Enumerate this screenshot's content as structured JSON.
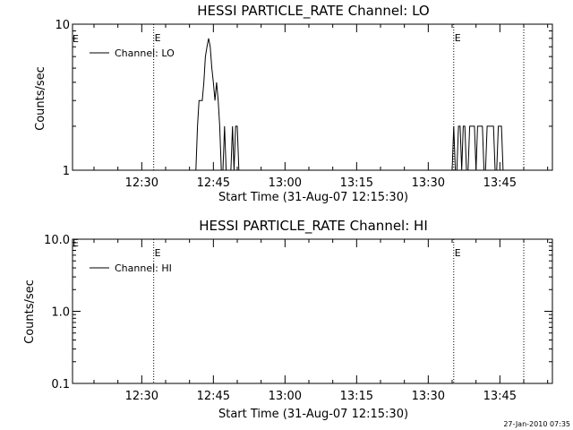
{
  "chart_data": [
    {
      "type": "line",
      "title": "HESSI PARTICLE_RATE Channel: LO",
      "xlabel": "Start Time (31-Aug-07 12:15:30)",
      "ylabel": "Counts/sec",
      "xlim": [
        "12:15:30",
        "13:56:00"
      ],
      "ylim": [
        1,
        10
      ],
      "yscale": "log",
      "yticks": [
        1,
        10
      ],
      "ytick_labels": [
        "1",
        "10"
      ],
      "xticks": [
        "12:30",
        "12:45",
        "13:00",
        "13:15",
        "13:30",
        "13:45"
      ],
      "grid": false,
      "legend": {
        "position": "top-left",
        "entries": [
          "Channel: LO"
        ]
      },
      "event_markers": [
        {
          "time": "12:32:30",
          "label": "E"
        },
        {
          "time": "13:35:20",
          "label": "E"
        },
        {
          "time": "13:50:00",
          "label": ""
        }
      ],
      "series": [
        {
          "name": "Channel: LO",
          "x": [
            "12:40:30",
            "12:41:20",
            "12:41:40",
            "12:42:00",
            "12:42:20",
            "12:42:40",
            "12:43:00",
            "12:43:20",
            "12:43:40",
            "12:44:00",
            "12:44:20",
            "12:44:40",
            "12:45:00",
            "12:45:20",
            "12:45:40",
            "12:46:00",
            "12:46:20",
            "12:46:40",
            "12:47:00",
            "12:47:20",
            "12:47:40",
            "12:48:00",
            "12:48:20",
            "12:48:40",
            "12:49:00",
            "12:49:20",
            "12:49:40",
            "12:50:00",
            "12:50:20",
            "12:50:40",
            "12:51:00",
            "12:51:20",
            "13:35:00",
            "13:35:20",
            "13:35:40",
            "13:36:00",
            "13:36:20",
            "13:36:40",
            "13:37:00",
            "13:37:20",
            "13:37:40",
            "13:38:00",
            "13:38:20",
            "13:38:40",
            "13:39:00",
            "13:39:20",
            "13:39:40",
            "13:40:00",
            "13:40:20",
            "13:40:40",
            "13:41:00",
            "13:41:20",
            "13:41:40",
            "13:42:00",
            "13:42:20",
            "13:42:40",
            "13:43:00",
            "13:43:20",
            "13:43:40",
            "13:44:00",
            "13:44:20",
            "13:44:40",
            "13:45:00",
            "13:45:20",
            "13:45:40",
            "13:46:00",
            "13:46:20",
            "13:46:40"
          ],
          "y": [
            1,
            1,
            2,
            3,
            3,
            3,
            4,
            6,
            7,
            8,
            7,
            5,
            4,
            3,
            4,
            3,
            2,
            1,
            1,
            2,
            1,
            1,
            1,
            1,
            2,
            1,
            2,
            2,
            1,
            1,
            1,
            1,
            1,
            2,
            1,
            1,
            2,
            2,
            1,
            2,
            2,
            1,
            1,
            2,
            2,
            2,
            2,
            1,
            2,
            2,
            2,
            2,
            1,
            1,
            2,
            2,
            2,
            2,
            2,
            1,
            1,
            2,
            2,
            2,
            1,
            1,
            1,
            1
          ]
        }
      ]
    },
    {
      "type": "line",
      "title": "HESSI PARTICLE_RATE Channel: HI",
      "xlabel": "Start Time (31-Aug-07 12:15:30)",
      "ylabel": "Counts/sec",
      "xlim": [
        "12:15:30",
        "13:56:00"
      ],
      "ylim": [
        0.1,
        10
      ],
      "yscale": "log",
      "yticks": [
        0.1,
        1,
        10
      ],
      "ytick_labels": [
        "0.1",
        "1.0",
        "10.0"
      ],
      "xticks": [
        "12:30",
        "12:45",
        "13:00",
        "13:15",
        "13:30",
        "13:45"
      ],
      "grid": false,
      "legend": {
        "position": "top-left",
        "entries": [
          "Channel: HI"
        ]
      },
      "event_markers": [
        {
          "time": "12:32:30",
          "label": "E"
        },
        {
          "time": "13:35:20",
          "label": "E"
        },
        {
          "time": "13:50:00",
          "label": ""
        }
      ],
      "series": [
        {
          "name": "Channel: HI",
          "x": [],
          "y": []
        }
      ]
    }
  ],
  "left_edge_flags": [
    "E",
    "E"
  ],
  "footer_timestamp": "27-Jan-2010 07:35"
}
